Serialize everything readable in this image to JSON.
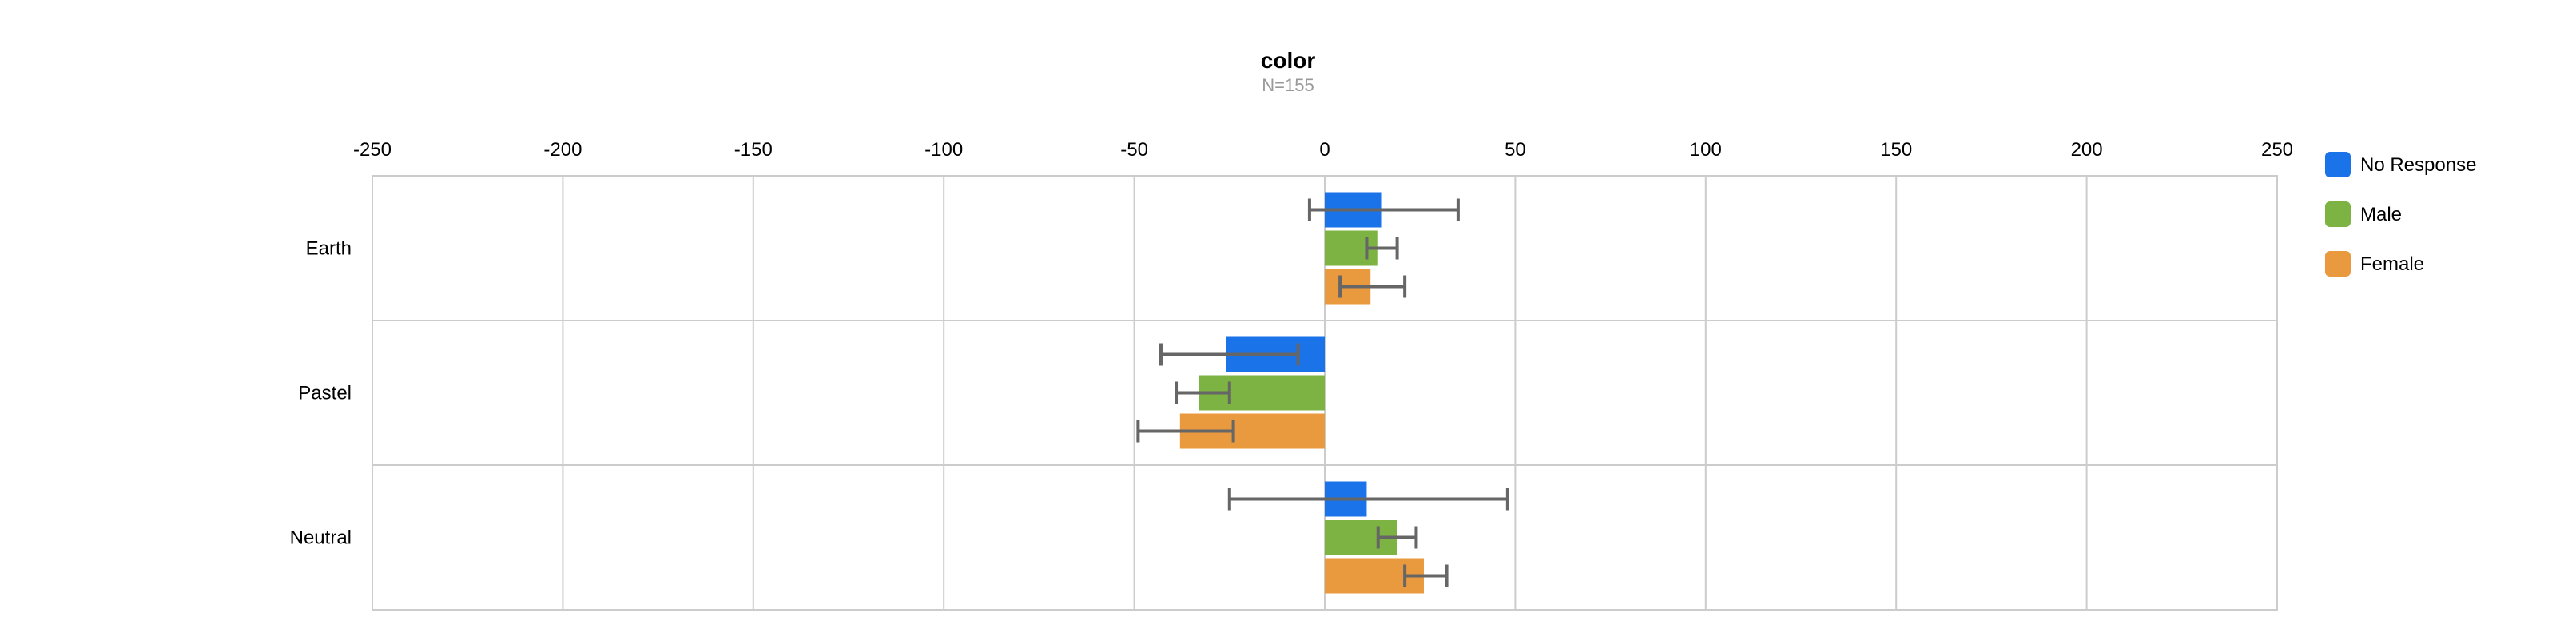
{
  "chart_data": {
    "type": "bar",
    "orientation": "horizontal",
    "title": "color",
    "subtitle": "N=155",
    "xlim": [
      -250,
      250
    ],
    "x_ticks": [
      -250,
      -200,
      -150,
      -100,
      -50,
      0,
      50,
      100,
      150,
      200,
      250
    ],
    "x_axis_position": "top",
    "grid": true,
    "legend_position": "right",
    "categories": [
      "Earth",
      "Pastel",
      "Neutral"
    ],
    "series": [
      {
        "name": "No Response",
        "color": "#1a73e8",
        "values": [
          15,
          -26,
          11
        ],
        "error_low": [
          -4,
          -43,
          -25
        ],
        "error_high": [
          35,
          -7,
          48
        ]
      },
      {
        "name": "Male",
        "color": "#7cb342",
        "values": [
          14,
          -33,
          19
        ],
        "error_low": [
          11,
          -39,
          14
        ],
        "error_high": [
          19,
          -25,
          24
        ]
      },
      {
        "name": "Female",
        "color": "#ea9a3e",
        "values": [
          12,
          -38,
          26
        ],
        "error_low": [
          4,
          -49,
          21
        ],
        "error_high": [
          21,
          -24,
          32
        ]
      }
    ]
  }
}
